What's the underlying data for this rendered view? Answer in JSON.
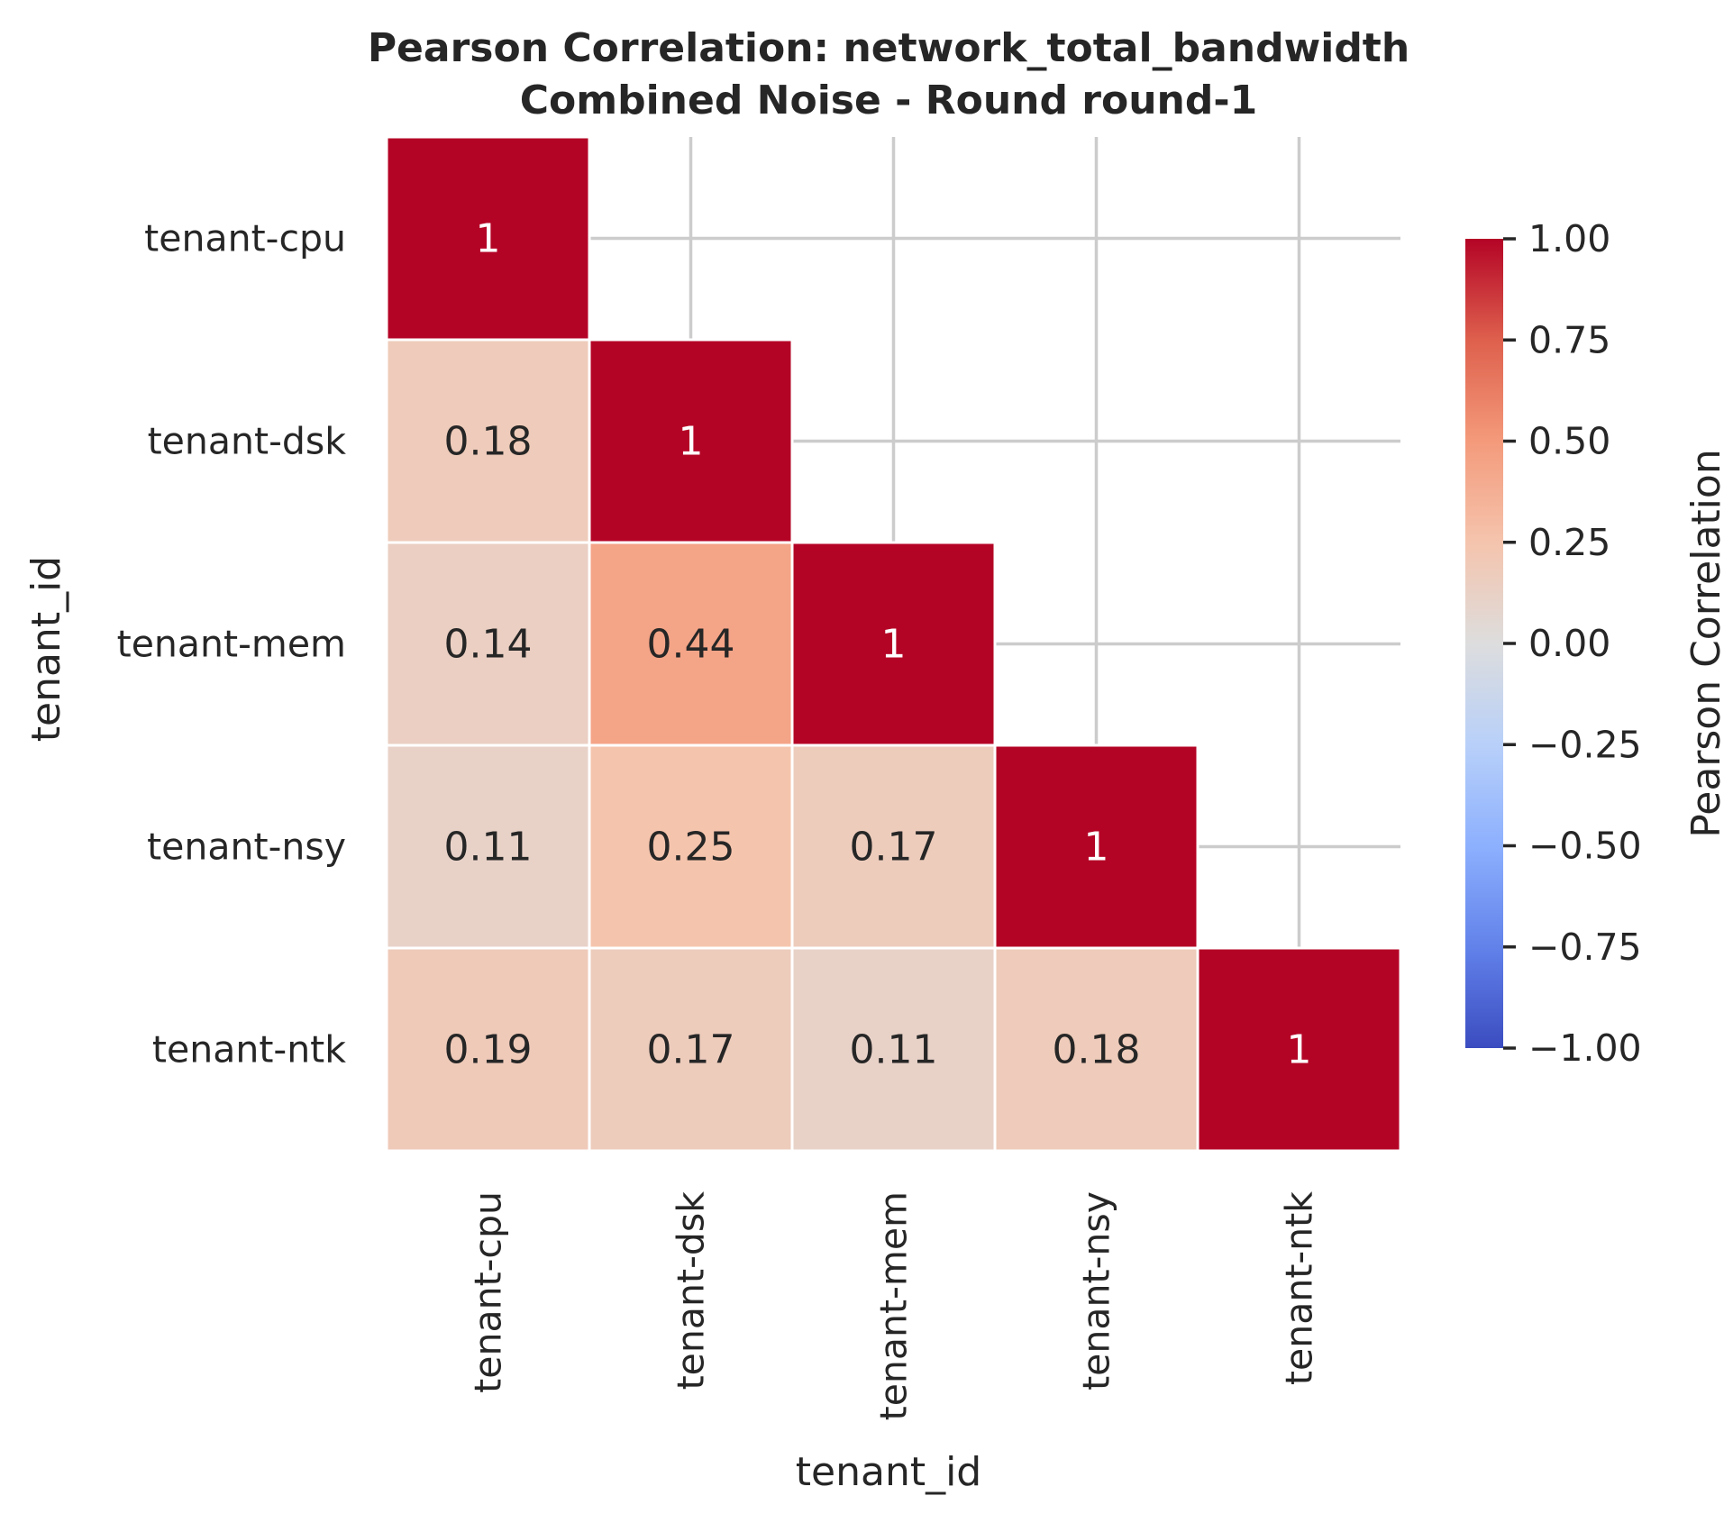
{
  "chart_data": {
    "type": "heatmap",
    "title": "Pearson Correlation: network_total_bandwidth",
    "subtitle": "Combined Noise - Round round-1",
    "xlabel": "tenant_id",
    "ylabel": "tenant_id",
    "categories": [
      "tenant-cpu",
      "tenant-dsk",
      "tenant-mem",
      "tenant-nsy",
      "tenant-ntk"
    ],
    "mask": "upper-triangle",
    "values": [
      [
        1,
        null,
        null,
        null,
        null
      ],
      [
        0.18,
        1,
        null,
        null,
        null
      ],
      [
        0.14,
        0.44,
        1,
        null,
        null
      ],
      [
        0.11,
        0.25,
        0.17,
        1,
        null
      ],
      [
        0.19,
        0.17,
        0.11,
        0.18,
        1
      ]
    ],
    "annotations": [
      [
        "1",
        "",
        "",
        "",
        ""
      ],
      [
        "0.18",
        "1",
        "",
        "",
        ""
      ],
      [
        "0.14",
        "0.44",
        "1",
        "",
        ""
      ],
      [
        "0.11",
        "0.25",
        "0.17",
        "1",
        ""
      ],
      [
        "0.19",
        "0.17",
        "0.11",
        "0.18",
        "1"
      ]
    ],
    "colormap": "coolwarm",
    "vmin": -1,
    "vmax": 1,
    "colorbar": {
      "label": "Pearson Correlation",
      "ticks": [
        1.0,
        0.75,
        0.5,
        0.25,
        0.0,
        -0.25,
        -0.5,
        -0.75,
        -1.0
      ],
      "tick_labels": [
        "1.00",
        "0.75",
        "0.50",
        "0.25",
        "0.00",
        "−0.25",
        "−0.50",
        "−0.75",
        "−1.00"
      ]
    },
    "grid": true
  }
}
